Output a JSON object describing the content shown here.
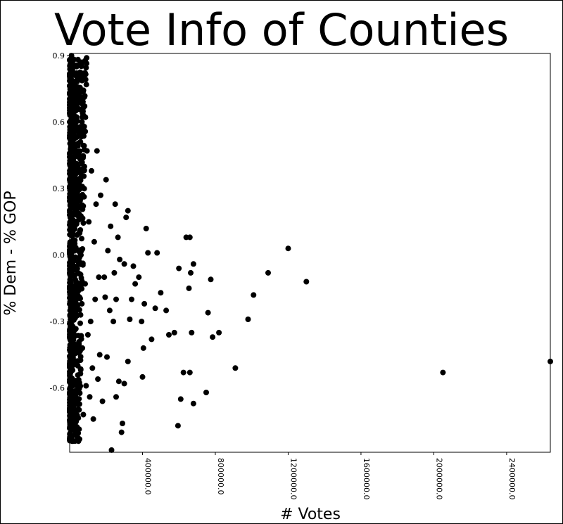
{
  "chart_data": {
    "type": "scatter",
    "title": "Vote Info of Counties",
    "xlabel": "# Votes",
    "ylabel": "% Dem - % GOP",
    "xlim": [
      0,
      2640000
    ],
    "ylim": [
      -0.89,
      0.91
    ],
    "x_ticks": [
      400000,
      800000,
      1200000,
      1600000,
      2000000,
      2400000
    ],
    "x_tick_labels": [
      "400000.0",
      "800000.0",
      "1200000.0",
      "1600000.0",
      "2000000.0",
      "2400000.0"
    ],
    "y_ticks": [
      0.9,
      0.6,
      0.3,
      0.0,
      -0.3,
      -0.6
    ],
    "y_tick_labels": [
      "0.9",
      "0.6",
      "0.3",
      "0.0",
      "-0.3",
      "-0.6"
    ],
    "grid": false,
    "legend": "none",
    "marker_color": "#000000",
    "points": [
      {
        "x": 2640000,
        "y": -0.48
      },
      {
        "x": 2050000,
        "y": -0.53
      },
      {
        "x": 1200000,
        "y": 0.03
      },
      {
        "x": 1300000,
        "y": -0.12
      },
      {
        "x": 1090000,
        "y": -0.08
      },
      {
        "x": 1010000,
        "y": -0.18
      },
      {
        "x": 980000,
        "y": -0.29
      },
      {
        "x": 910000,
        "y": -0.51
      },
      {
        "x": 820000,
        "y": -0.35
      },
      {
        "x": 785000,
        "y": -0.37
      },
      {
        "x": 775000,
        "y": -0.11
      },
      {
        "x": 760000,
        "y": -0.26
      },
      {
        "x": 750000,
        "y": -0.62
      },
      {
        "x": 680000,
        "y": -0.04
      },
      {
        "x": 660000,
        "y": 0.08
      },
      {
        "x": 665000,
        "y": -0.08
      },
      {
        "x": 655000,
        "y": -0.15
      },
      {
        "x": 640000,
        "y": 0.08
      },
      {
        "x": 670000,
        "y": -0.35
      },
      {
        "x": 660000,
        "y": -0.53
      },
      {
        "x": 680000,
        "y": -0.67
      },
      {
        "x": 625000,
        "y": -0.53
      },
      {
        "x": 610000,
        "y": -0.65
      },
      {
        "x": 595000,
        "y": -0.77
      },
      {
        "x": 600000,
        "y": -0.06
      },
      {
        "x": 575000,
        "y": -0.35
      },
      {
        "x": 545000,
        "y": -0.36
      },
      {
        "x": 530000,
        "y": -0.25
      },
      {
        "x": 500000,
        "y": -0.17
      },
      {
        "x": 480000,
        "y": 0.01
      },
      {
        "x": 470000,
        "y": -0.24
      },
      {
        "x": 450000,
        "y": -0.38
      },
      {
        "x": 430000,
        "y": 0.01
      },
      {
        "x": 420000,
        "y": 0.12
      },
      {
        "x": 410000,
        "y": -0.22
      },
      {
        "x": 405000,
        "y": -0.42
      },
      {
        "x": 400000,
        "y": -0.55
      },
      {
        "x": 395000,
        "y": -0.3
      },
      {
        "x": 380000,
        "y": -0.1
      },
      {
        "x": 360000,
        "y": -0.13
      },
      {
        "x": 340000,
        "y": -0.2
      },
      {
        "x": 350000,
        "y": -0.05
      },
      {
        "x": 330000,
        "y": -0.29
      },
      {
        "x": 320000,
        "y": 0.2
      },
      {
        "x": 320000,
        "y": -0.48
      },
      {
        "x": 310000,
        "y": 0.17
      },
      {
        "x": 300000,
        "y": -0.04
      },
      {
        "x": 300000,
        "y": -0.58
      },
      {
        "x": 290000,
        "y": -0.76
      },
      {
        "x": 285000,
        "y": -0.8
      },
      {
        "x": 270000,
        "y": -0.57
      },
      {
        "x": 275000,
        "y": -0.02
      },
      {
        "x": 265000,
        "y": 0.08
      },
      {
        "x": 255000,
        "y": -0.64
      },
      {
        "x": 255000,
        "y": -0.2
      },
      {
        "x": 250000,
        "y": 0.23
      },
      {
        "x": 245000,
        "y": -0.08
      },
      {
        "x": 240000,
        "y": -0.3
      },
      {
        "x": 230000,
        "y": -0.88
      },
      {
        "x": 225000,
        "y": 0.13
      },
      {
        "x": 220000,
        "y": -0.25
      },
      {
        "x": 210000,
        "y": 0.02
      },
      {
        "x": 205000,
        "y": -0.46
      },
      {
        "x": 200000,
        "y": 0.34
      },
      {
        "x": 195000,
        "y": -0.19
      },
      {
        "x": 190000,
        "y": -0.1
      },
      {
        "x": 180000,
        "y": -0.66
      },
      {
        "x": 170000,
        "y": 0.27
      },
      {
        "x": 165000,
        "y": -0.45
      },
      {
        "x": 160000,
        "y": -0.1
      },
      {
        "x": 155000,
        "y": -0.56
      },
      {
        "x": 150000,
        "y": 0.47
      },
      {
        "x": 145000,
        "y": 0.23
      },
      {
        "x": 140000,
        "y": -0.2
      },
      {
        "x": 135000,
        "y": 0.06
      },
      {
        "x": 130000,
        "y": -0.74
      },
      {
        "x": 125000,
        "y": -0.51
      },
      {
        "x": 120000,
        "y": 0.38
      },
      {
        "x": 115000,
        "y": -0.3
      },
      {
        "x": 110000,
        "y": -0.64
      },
      {
        "x": 105000,
        "y": 0.15
      },
      {
        "x": 100000,
        "y": -0.36
      },
      {
        "x": 95000,
        "y": 0.47
      },
      {
        "x": 90000,
        "y": -0.59
      },
      {
        "x": 85000,
        "y": -0.13
      },
      {
        "x": 80000,
        "y": 0.3
      },
      {
        "x": 75000,
        "y": -0.72
      },
      {
        "x": 70000,
        "y": -0.42
      },
      {
        "x": 65000,
        "y": 0.57
      },
      {
        "x": 60000,
        "y": -0.27
      },
      {
        "x": 55000,
        "y": 0.1
      },
      {
        "x": 50000,
        "y": 0.73
      },
      {
        "x": 45000,
        "y": -0.5
      },
      {
        "x": 40000,
        "y": 0.2
      },
      {
        "x": 35000,
        "y": -0.12
      },
      {
        "x": 30000,
        "y": 0.82
      },
      {
        "x": 25000,
        "y": -0.67
      },
      {
        "x": 20000,
        "y": 0.52
      },
      {
        "x": 15000,
        "y": -0.35
      },
      {
        "x": 10000,
        "y": 0.9
      },
      {
        "x": 8000,
        "y": -0.78
      },
      {
        "x": 5000,
        "y": 0.4
      },
      {
        "x": 3000,
        "y": -0.6
      }
    ]
  }
}
